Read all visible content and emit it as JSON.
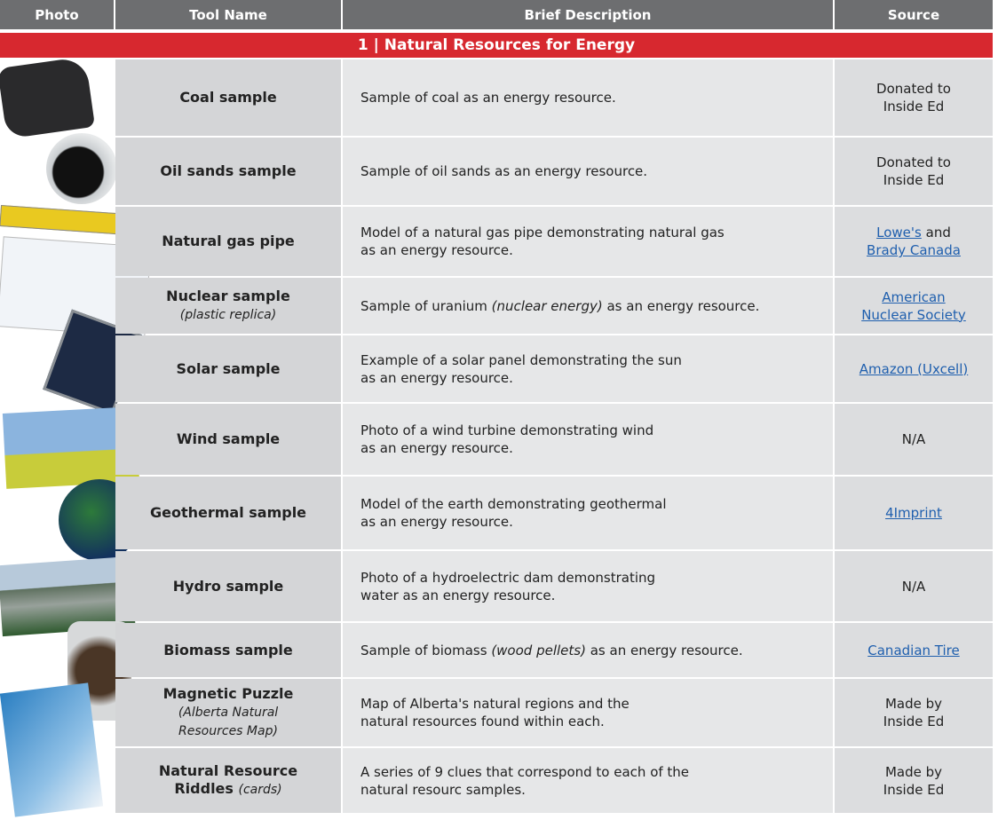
{
  "header": {
    "columns": [
      "Photo",
      "Tool Name",
      "Brief Description",
      "Source"
    ]
  },
  "section": "1 | Natural Resources for Energy",
  "rows": [
    {
      "tool": [
        [
          "Coal sample"
        ]
      ],
      "description": [
        [
          "Sample of coal as an energy resource."
        ]
      ],
      "source": [
        [
          "Donated to"
        ],
        [
          "Inside Ed"
        ]
      ]
    },
    {
      "tool": [
        [
          "Oil sands sample"
        ]
      ],
      "description": [
        [
          "Sample of oil sands as an energy resource."
        ]
      ],
      "source": [
        [
          "Donated to"
        ],
        [
          "Inside Ed"
        ]
      ]
    },
    {
      "tool": [
        [
          "Natural gas pipe"
        ]
      ],
      "description": [
        [
          "Model of a natural gas pipe demonstrating natural gas"
        ],
        [
          "as an energy resource."
        ]
      ],
      "source": [
        [
          {
            "text": "Lowe's",
            "link": true
          },
          " and"
        ],
        [
          {
            "text": "Brady Canada",
            "link": true
          }
        ]
      ]
    },
    {
      "tool": [
        [
          "Nuclear sample"
        ],
        [
          {
            "text": "(plastic replica)",
            "italic": true
          }
        ]
      ],
      "description": [
        [
          "Sample of uranium ",
          {
            "text": "(nuclear energy)",
            "italic": true
          },
          " as an energy resource."
        ]
      ],
      "source": [
        [
          {
            "text": "American",
            "link": true
          }
        ],
        [
          {
            "text": "Nuclear Society",
            "link": true
          }
        ]
      ]
    },
    {
      "tool": [
        [
          "Solar sample"
        ]
      ],
      "description": [
        [
          "Example of a solar panel demonstrating the sun"
        ],
        [
          "as an energy resource."
        ]
      ],
      "source": [
        [
          {
            "text": "Amazon (Uxcell)",
            "link": true
          }
        ]
      ]
    },
    {
      "tool": [
        [
          "Wind sample"
        ]
      ],
      "description": [
        [
          "Photo of a wind turbine demonstrating wind"
        ],
        [
          "as an energy resource."
        ]
      ],
      "source": [
        [
          "N/A"
        ]
      ]
    },
    {
      "tool": [
        [
          "Geothermal sample"
        ]
      ],
      "description": [
        [
          "Model of the earth demonstrating geothermal"
        ],
        [
          "as an energy resource."
        ]
      ],
      "source": [
        [
          {
            "text": "4Imprint",
            "link": true
          }
        ]
      ]
    },
    {
      "tool": [
        [
          "Hydro sample"
        ]
      ],
      "description": [
        [
          "Photo of a hydroelectric dam demonstrating"
        ],
        [
          "water as an energy resource."
        ]
      ],
      "source": [
        [
          "N/A"
        ]
      ]
    },
    {
      "tool": [
        [
          "Biomass sample"
        ]
      ],
      "description": [
        [
          "Sample of biomass ",
          {
            "text": "(wood pellets)",
            "italic": true
          },
          " as an energy resource."
        ]
      ],
      "source": [
        [
          {
            "text": "Canadian Tire",
            "link": true
          }
        ]
      ]
    },
    {
      "tool": [
        [
          "Magnetic Puzzle"
        ],
        [
          {
            "text": "(Alberta Natural",
            "italic": true
          }
        ],
        [
          {
            "text": "Resources Map)",
            "italic": true
          }
        ]
      ],
      "description": [
        [
          "Map of Alberta's natural regions and the"
        ],
        [
          "natural resources found within each."
        ]
      ],
      "source": [
        [
          "Made by"
        ],
        [
          "Inside Ed"
        ]
      ]
    },
    {
      "tool": [
        [
          "Natural Resource"
        ],
        [
          "Riddles ",
          {
            "text": "(cards)",
            "italic": true
          }
        ]
      ],
      "description": [
        [
          "A series of 9 clues that correspond to each of the"
        ],
        [
          "natural resourc samples."
        ]
      ],
      "source": [
        [
          "Made by"
        ],
        [
          "Inside Ed"
        ]
      ]
    }
  ]
}
